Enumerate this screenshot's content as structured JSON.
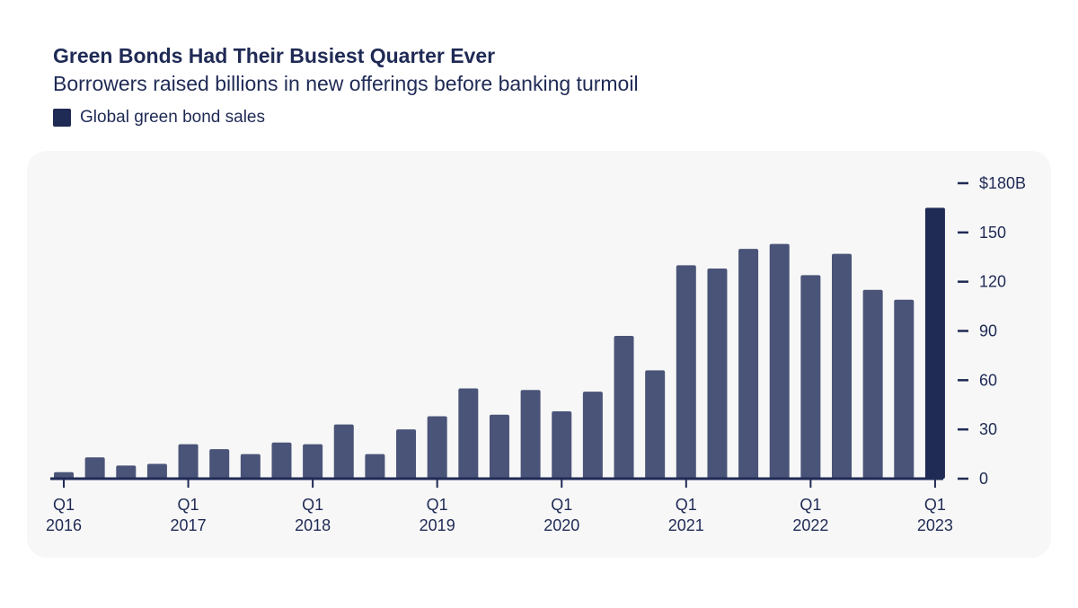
{
  "header": {
    "title": "Green Bonds Had Their Busiest Quarter Ever",
    "subtitle": "Borrowers raised billions in new offerings before banking turmoil"
  },
  "legend": {
    "label": "Global green bond sales",
    "color": "#1f2a55"
  },
  "colors": {
    "bar": "#4a5478",
    "highlight": "#1f2a55",
    "panel": "#f7f7f7"
  },
  "chart_data": {
    "type": "bar",
    "title": "Green Bonds Had Their Busiest Quarter Ever",
    "subtitle": "Borrowers raised billions in new offerings before banking turmoil",
    "series": [
      {
        "name": "Global green bond sales",
        "values": [
          4,
          13,
          8,
          9,
          21,
          18,
          15,
          22,
          21,
          33,
          15,
          30,
          38,
          55,
          39,
          54,
          41,
          53,
          87,
          66,
          130,
          128,
          140,
          143,
          124,
          137,
          115,
          109,
          165
        ],
        "highlight_last": true
      }
    ],
    "categories": [
      "Q1 2016",
      "Q2 2016",
      "Q3 2016",
      "Q4 2016",
      "Q1 2017",
      "Q2 2017",
      "Q3 2017",
      "Q4 2017",
      "Q1 2018",
      "Q2 2018",
      "Q3 2018",
      "Q4 2018",
      "Q1 2019",
      "Q2 2019",
      "Q3 2019",
      "Q4 2019",
      "Q1 2020",
      "Q2 2020",
      "Q3 2020",
      "Q4 2020",
      "Q1 2021",
      "Q2 2021",
      "Q3 2021",
      "Q4 2021",
      "Q1 2022",
      "Q2 2022",
      "Q3 2022",
      "Q4 2022",
      "Q1 2023"
    ],
    "x_ticks": [
      {
        "index": 0,
        "quarter": "Q1",
        "year": "2016"
      },
      {
        "index": 4,
        "quarter": "Q1",
        "year": "2017"
      },
      {
        "index": 8,
        "quarter": "Q1",
        "year": "2018"
      },
      {
        "index": 12,
        "quarter": "Q1",
        "year": "2019"
      },
      {
        "index": 16,
        "quarter": "Q1",
        "year": "2020"
      },
      {
        "index": 20,
        "quarter": "Q1",
        "year": "2021"
      },
      {
        "index": 24,
        "quarter": "Q1",
        "year": "2022"
      },
      {
        "index": 28,
        "quarter": "Q1",
        "year": "2023"
      }
    ],
    "y_ticks": [
      {
        "value": 0,
        "label": "0"
      },
      {
        "value": 30,
        "label": "30"
      },
      {
        "value": 60,
        "label": "60"
      },
      {
        "value": 90,
        "label": "90"
      },
      {
        "value": 120,
        "label": "120"
      },
      {
        "value": 150,
        "label": "150"
      },
      {
        "value": 180,
        "label": "$180B"
      }
    ],
    "ylim": [
      0,
      180
    ],
    "y_axis_position": "right",
    "grid": false,
    "legend_position": "top-left"
  }
}
